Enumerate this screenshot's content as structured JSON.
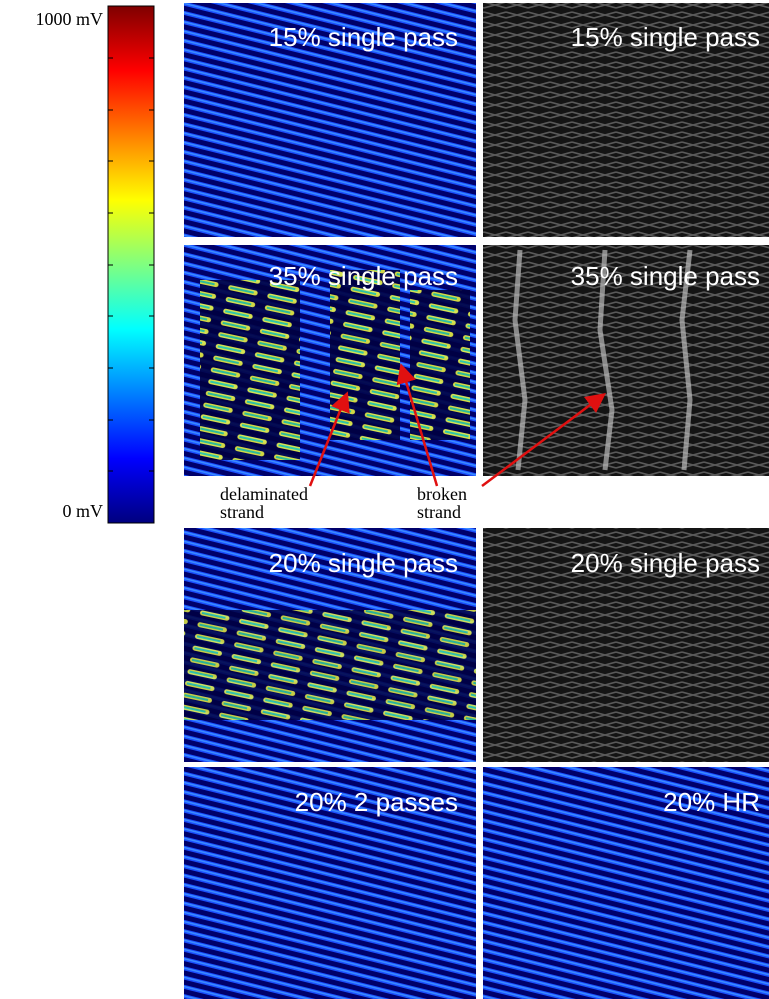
{
  "colorbar": {
    "max_label": "1000 mV",
    "min_label": "0 mV"
  },
  "panels": [
    {
      "label": "15% single pass"
    },
    {
      "label": "15% single pass"
    },
    {
      "label": "35% single pass"
    },
    {
      "label": "35% single pass"
    },
    {
      "label": "20% single pass"
    },
    {
      "label": "20% single pass"
    },
    {
      "label": "20% 2 passes"
    },
    {
      "label": "20% HR"
    }
  ],
  "annotations": [
    {
      "lines": [
        "delaminated",
        "strand"
      ]
    },
    {
      "lines": [
        "broken",
        "strand"
      ]
    }
  ]
}
